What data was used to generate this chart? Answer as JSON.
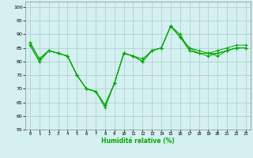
{
  "xlabel": "Humidité relative (%)",
  "ylabel": "",
  "xlim": [
    -0.5,
    23.5
  ],
  "ylim": [
    55,
    102
  ],
  "yticks": [
    55,
    60,
    65,
    70,
    75,
    80,
    85,
    90,
    95,
    100
  ],
  "xticks": [
    0,
    1,
    2,
    3,
    4,
    5,
    6,
    7,
    8,
    9,
    10,
    11,
    12,
    13,
    14,
    15,
    16,
    17,
    18,
    19,
    20,
    21,
    22,
    23
  ],
  "bg_color": "#d4f0f0",
  "grid_color": "#aacccc",
  "line_color": "#00aa00",
  "lines": [
    [
      87,
      81,
      84,
      83,
      82,
      75,
      70,
      69,
      63,
      72,
      83,
      82,
      80,
      84,
      85,
      93,
      89,
      84,
      83,
      83,
      83,
      84,
      85,
      85
    ],
    [
      87,
      81,
      84,
      83,
      82,
      75,
      70,
      69,
      64,
      72,
      83,
      82,
      81,
      84,
      85,
      93,
      89,
      85,
      84,
      83,
      84,
      85,
      86,
      86
    ],
    [
      86,
      80,
      84,
      83,
      82,
      75,
      70,
      69,
      64,
      72,
      83,
      82,
      80,
      84,
      85,
      93,
      90,
      84,
      83,
      83,
      82,
      84,
      85,
      85
    ],
    [
      86,
      80,
      84,
      83,
      82,
      75,
      70,
      69,
      64,
      72,
      83,
      82,
      80,
      84,
      85,
      93,
      89,
      85,
      83,
      82,
      83,
      84,
      85,
      85
    ]
  ]
}
